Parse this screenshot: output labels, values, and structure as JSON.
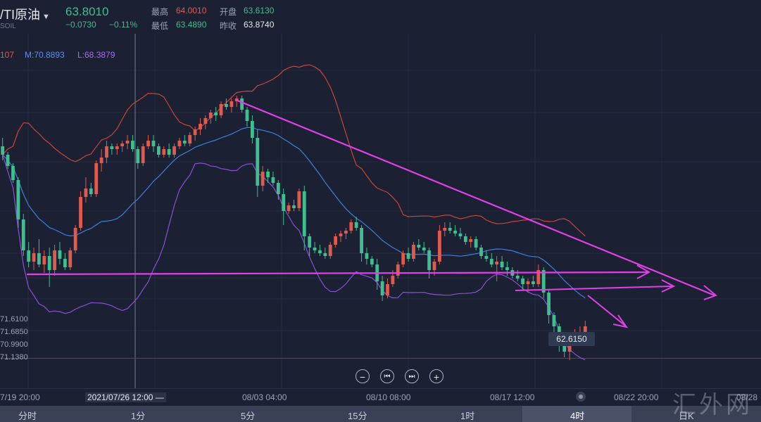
{
  "header": {
    "symbol": "/TI原油",
    "code": "SOIL",
    "last": "63.8010",
    "change": "−0.0730",
    "change_pct": "−0.11%",
    "high_label": "最高",
    "high": "64.0010",
    "open_label": "开盘",
    "open": "63.6130",
    "low_label": "最低",
    "low": "63.4890",
    "prev_label": "昨收",
    "prev": "63.8740"
  },
  "indicator": {
    "upper": "107",
    "mid": "M:70.8893",
    "lower": "L:68.3879"
  },
  "left_axis_labels": [
    "71.6100",
    "71.6850",
    "70.9900",
    "71.1380"
  ],
  "price_tag": "62.6150",
  "x_axis": {
    "labels": [
      "7/19 20:00",
      "2021/07/26 12:00 —",
      "08/03 04:00",
      "08/10 08:00",
      "08/17 12:00",
      "08/22 20:00",
      "08/28"
    ]
  },
  "controls": {
    "zoom_out": "−",
    "prev": "⏮",
    "next": "⏭",
    "zoom_in": "+"
  },
  "tabs": [
    "分时",
    "1分",
    "5分",
    "15分",
    "1时",
    "4时",
    "日K"
  ],
  "selected_tab": "4时",
  "watermark": "汇外网",
  "colors": {
    "up": "#e05a4f",
    "down": "#3fbf8f",
    "upper_band": "#c8463b",
    "mid_band": "#3f7fe0",
    "lower_band": "#8a4fd8",
    "trendline": "#e040e8",
    "background": "#1b2033"
  },
  "chart_data": {
    "type": "candlestick",
    "title": "",
    "indicators": [
      "Bollinger upper",
      "Bollinger mid",
      "Bollinger lower"
    ],
    "price_range": [
      61.9,
      73.9
    ],
    "highlighted_price": 62.615,
    "candles": [
      {
        "o": 70.2,
        "h": 70.5,
        "l": 69.7,
        "c": 69.9
      },
      {
        "o": 69.9,
        "h": 70.0,
        "l": 69.4,
        "c": 69.5
      },
      {
        "o": 69.5,
        "h": 69.6,
        "l": 68.9,
        "c": 69.0
      },
      {
        "o": 69.0,
        "h": 69.1,
        "l": 67.3,
        "c": 67.6
      },
      {
        "o": 67.6,
        "h": 67.8,
        "l": 66.3,
        "c": 66.5
      },
      {
        "o": 66.5,
        "h": 66.8,
        "l": 65.9,
        "c": 66.1
      },
      {
        "o": 66.1,
        "h": 66.6,
        "l": 65.8,
        "c": 66.4
      },
      {
        "o": 66.4,
        "h": 66.9,
        "l": 65.9,
        "c": 66.0
      },
      {
        "o": 66.0,
        "h": 66.5,
        "l": 65.7,
        "c": 66.3
      },
      {
        "o": 66.3,
        "h": 66.6,
        "l": 65.2,
        "c": 65.8
      },
      {
        "o": 65.8,
        "h": 66.7,
        "l": 65.6,
        "c": 66.5
      },
      {
        "o": 66.5,
        "h": 66.8,
        "l": 66.0,
        "c": 66.2
      },
      {
        "o": 66.2,
        "h": 66.4,
        "l": 65.8,
        "c": 65.9
      },
      {
        "o": 65.9,
        "h": 66.6,
        "l": 65.8,
        "c": 66.5
      },
      {
        "o": 66.5,
        "h": 67.4,
        "l": 66.4,
        "c": 67.3
      },
      {
        "o": 67.3,
        "h": 68.6,
        "l": 67.2,
        "c": 68.4
      },
      {
        "o": 68.4,
        "h": 69.1,
        "l": 68.2,
        "c": 68.7
      },
      {
        "o": 68.7,
        "h": 68.9,
        "l": 68.4,
        "c": 68.5
      },
      {
        "o": 68.5,
        "h": 69.7,
        "l": 68.4,
        "c": 69.6
      },
      {
        "o": 69.6,
        "h": 70.1,
        "l": 69.3,
        "c": 69.8
      },
      {
        "o": 69.8,
        "h": 70.4,
        "l": 69.6,
        "c": 70.2
      },
      {
        "o": 70.2,
        "h": 70.3,
        "l": 69.9,
        "c": 70.1
      },
      {
        "o": 70.1,
        "h": 70.3,
        "l": 69.9,
        "c": 70.2
      },
      {
        "o": 70.2,
        "h": 70.4,
        "l": 70.0,
        "c": 70.3
      },
      {
        "o": 70.3,
        "h": 70.6,
        "l": 70.1,
        "c": 70.4
      },
      {
        "o": 70.4,
        "h": 70.6,
        "l": 70.0,
        "c": 70.1
      },
      {
        "o": 70.1,
        "h": 70.2,
        "l": 69.4,
        "c": 69.6
      },
      {
        "o": 69.6,
        "h": 70.3,
        "l": 69.5,
        "c": 70.2
      },
      {
        "o": 70.2,
        "h": 70.6,
        "l": 70.1,
        "c": 70.4
      },
      {
        "o": 70.4,
        "h": 70.6,
        "l": 70.0,
        "c": 70.2
      },
      {
        "o": 70.2,
        "h": 70.3,
        "l": 69.8,
        "c": 69.9
      },
      {
        "o": 69.9,
        "h": 70.2,
        "l": 69.8,
        "c": 70.1
      },
      {
        "o": 70.1,
        "h": 70.3,
        "l": 69.8,
        "c": 69.9
      },
      {
        "o": 69.9,
        "h": 70.3,
        "l": 69.8,
        "c": 70.2
      },
      {
        "o": 70.2,
        "h": 70.5,
        "l": 70.1,
        "c": 70.4
      },
      {
        "o": 70.4,
        "h": 70.6,
        "l": 70.2,
        "c": 70.3
      },
      {
        "o": 70.3,
        "h": 70.7,
        "l": 70.2,
        "c": 70.6
      },
      {
        "o": 70.6,
        "h": 70.9,
        "l": 70.4,
        "c": 70.8
      },
      {
        "o": 70.8,
        "h": 71.2,
        "l": 70.6,
        "c": 71.0
      },
      {
        "o": 71.0,
        "h": 71.3,
        "l": 70.8,
        "c": 71.2
      },
      {
        "o": 71.2,
        "h": 71.5,
        "l": 71.0,
        "c": 71.4
      },
      {
        "o": 71.4,
        "h": 71.6,
        "l": 71.1,
        "c": 71.3
      },
      {
        "o": 71.3,
        "h": 71.8,
        "l": 71.2,
        "c": 71.7
      },
      {
        "o": 71.7,
        "h": 71.9,
        "l": 71.5,
        "c": 71.6
      },
      {
        "o": 71.6,
        "h": 71.9,
        "l": 71.4,
        "c": 71.8
      },
      {
        "o": 71.8,
        "h": 72.0,
        "l": 71.6,
        "c": 71.9
      },
      {
        "o": 71.9,
        "h": 72.0,
        "l": 71.4,
        "c": 71.5
      },
      {
        "o": 71.5,
        "h": 71.6,
        "l": 70.9,
        "c": 71.1
      },
      {
        "o": 71.1,
        "h": 71.3,
        "l": 70.3,
        "c": 70.5
      },
      {
        "o": 70.5,
        "h": 70.8,
        "l": 68.4,
        "c": 68.8
      },
      {
        "o": 68.8,
        "h": 69.5,
        "l": 68.6,
        "c": 69.3
      },
      {
        "o": 69.3,
        "h": 69.4,
        "l": 68.9,
        "c": 69.1
      },
      {
        "o": 69.1,
        "h": 69.3,
        "l": 68.8,
        "c": 68.9
      },
      {
        "o": 68.9,
        "h": 69.0,
        "l": 68.3,
        "c": 68.5
      },
      {
        "o": 68.5,
        "h": 68.7,
        "l": 67.4,
        "c": 67.9
      },
      {
        "o": 67.9,
        "h": 68.2,
        "l": 67.8,
        "c": 68.1
      },
      {
        "o": 68.1,
        "h": 68.3,
        "l": 67.9,
        "c": 68.0
      },
      {
        "o": 68.0,
        "h": 68.7,
        "l": 67.9,
        "c": 68.6
      },
      {
        "o": 68.6,
        "h": 68.8,
        "l": 66.5,
        "c": 67.0
      },
      {
        "o": 67.0,
        "h": 67.1,
        "l": 66.3,
        "c": 66.6
      },
      {
        "o": 66.6,
        "h": 66.8,
        "l": 66.4,
        "c": 66.5
      },
      {
        "o": 66.5,
        "h": 66.7,
        "l": 66.3,
        "c": 66.4
      },
      {
        "o": 66.4,
        "h": 66.6,
        "l": 66.2,
        "c": 66.3
      },
      {
        "o": 66.3,
        "h": 66.8,
        "l": 66.2,
        "c": 66.7
      },
      {
        "o": 66.7,
        "h": 67.1,
        "l": 66.6,
        "c": 67.0
      },
      {
        "o": 67.0,
        "h": 67.2,
        "l": 66.8,
        "c": 67.1
      },
      {
        "o": 67.1,
        "h": 67.3,
        "l": 66.9,
        "c": 67.2
      },
      {
        "o": 67.2,
        "h": 67.6,
        "l": 67.1,
        "c": 67.5
      },
      {
        "o": 67.5,
        "h": 67.7,
        "l": 67.2,
        "c": 67.3
      },
      {
        "o": 67.3,
        "h": 67.4,
        "l": 66.1,
        "c": 66.4
      },
      {
        "o": 66.4,
        "h": 66.6,
        "l": 66.0,
        "c": 66.2
      },
      {
        "o": 66.2,
        "h": 66.3,
        "l": 65.9,
        "c": 66.0
      },
      {
        "o": 66.0,
        "h": 66.2,
        "l": 65.1,
        "c": 65.4
      },
      {
        "o": 65.4,
        "h": 65.6,
        "l": 64.7,
        "c": 64.9
      },
      {
        "o": 64.9,
        "h": 65.5,
        "l": 64.8,
        "c": 65.3
      },
      {
        "o": 65.3,
        "h": 65.8,
        "l": 65.2,
        "c": 65.6
      },
      {
        "o": 65.6,
        "h": 66.1,
        "l": 65.5,
        "c": 66.0
      },
      {
        "o": 66.0,
        "h": 66.5,
        "l": 65.9,
        "c": 66.4
      },
      {
        "o": 66.4,
        "h": 66.6,
        "l": 66.1,
        "c": 66.2
      },
      {
        "o": 66.2,
        "h": 66.8,
        "l": 66.1,
        "c": 66.7
      },
      {
        "o": 66.7,
        "h": 66.9,
        "l": 66.5,
        "c": 66.6
      },
      {
        "o": 66.6,
        "h": 66.8,
        "l": 66.4,
        "c": 66.5
      },
      {
        "o": 66.5,
        "h": 66.6,
        "l": 65.5,
        "c": 65.8
      },
      {
        "o": 65.8,
        "h": 66.2,
        "l": 65.6,
        "c": 66.1
      },
      {
        "o": 66.1,
        "h": 67.4,
        "l": 66.0,
        "c": 67.2
      },
      {
        "o": 67.2,
        "h": 67.5,
        "l": 67.0,
        "c": 67.3
      },
      {
        "o": 67.3,
        "h": 67.5,
        "l": 67.1,
        "c": 67.2
      },
      {
        "o": 67.2,
        "h": 67.4,
        "l": 67.0,
        "c": 67.1
      },
      {
        "o": 67.1,
        "h": 67.3,
        "l": 66.9,
        "c": 67.0
      },
      {
        "o": 67.0,
        "h": 67.1,
        "l": 66.7,
        "c": 66.8
      },
      {
        "o": 66.8,
        "h": 67.0,
        "l": 66.6,
        "c": 66.9
      },
      {
        "o": 66.9,
        "h": 67.0,
        "l": 66.5,
        "c": 66.6
      },
      {
        "o": 66.6,
        "h": 66.7,
        "l": 66.2,
        "c": 66.3
      },
      {
        "o": 66.3,
        "h": 66.5,
        "l": 66.1,
        "c": 66.2
      },
      {
        "o": 66.2,
        "h": 66.4,
        "l": 65.9,
        "c": 66.0
      },
      {
        "o": 66.0,
        "h": 66.3,
        "l": 65.4,
        "c": 66.1
      },
      {
        "o": 66.1,
        "h": 66.3,
        "l": 65.8,
        "c": 65.9
      },
      {
        "o": 65.9,
        "h": 66.1,
        "l": 65.6,
        "c": 65.8
      },
      {
        "o": 65.8,
        "h": 65.9,
        "l": 65.5,
        "c": 65.6
      },
      {
        "o": 65.6,
        "h": 65.8,
        "l": 65.4,
        "c": 65.5
      },
      {
        "o": 65.5,
        "h": 65.6,
        "l": 65.1,
        "c": 65.3
      },
      {
        "o": 65.3,
        "h": 65.5,
        "l": 65.0,
        "c": 65.4
      },
      {
        "o": 65.4,
        "h": 65.6,
        "l": 65.2,
        "c": 65.3
      },
      {
        "o": 65.3,
        "h": 66.0,
        "l": 65.2,
        "c": 65.8
      },
      {
        "o": 65.8,
        "h": 65.9,
        "l": 64.8,
        "c": 65.0
      },
      {
        "o": 65.0,
        "h": 65.1,
        "l": 63.9,
        "c": 64.2
      },
      {
        "o": 64.2,
        "h": 64.3,
        "l": 63.6,
        "c": 63.8
      },
      {
        "o": 63.8,
        "h": 63.9,
        "l": 62.9,
        "c": 63.1
      },
      {
        "o": 63.1,
        "h": 63.3,
        "l": 62.7,
        "c": 62.9
      },
      {
        "o": 62.9,
        "h": 63.5,
        "l": 62.6,
        "c": 63.4
      },
      {
        "o": 63.4,
        "h": 63.7,
        "l": 63.2,
        "c": 63.5
      },
      {
        "o": 63.5,
        "h": 63.8,
        "l": 63.3,
        "c": 63.6
      },
      {
        "o": 63.6,
        "h": 64.0,
        "l": 63.5,
        "c": 63.8
      }
    ]
  }
}
